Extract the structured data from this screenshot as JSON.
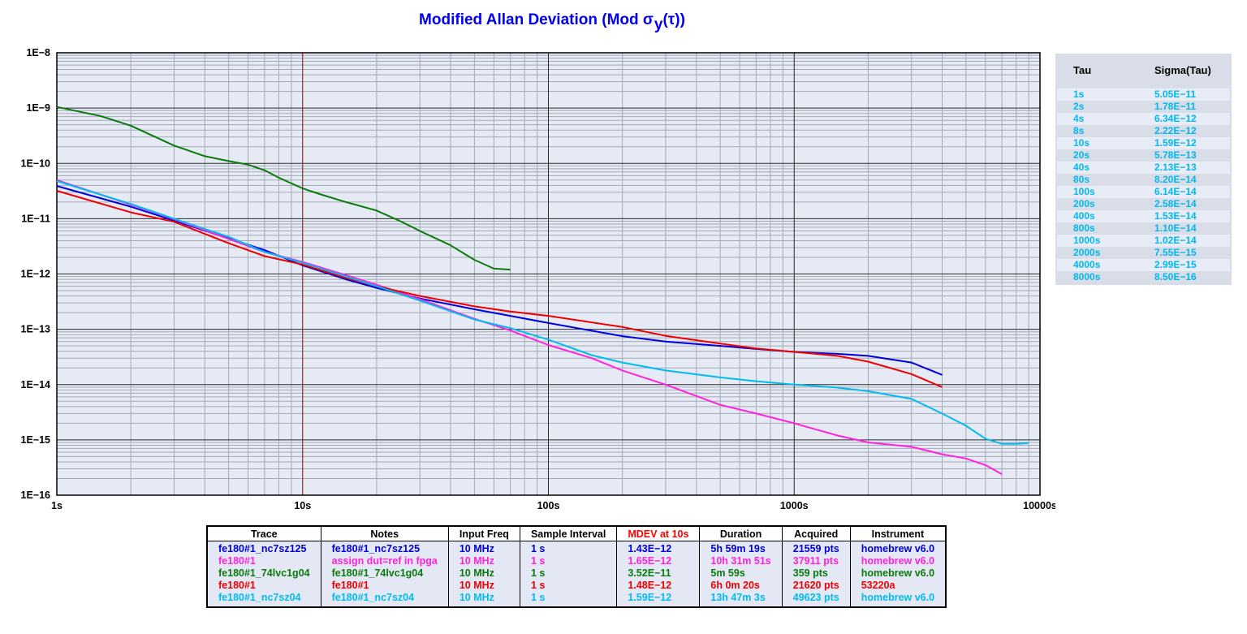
{
  "chart_data": {
    "type": "line",
    "title": "Modified Allan Deviation (Mod σ",
    "title_sub": "y",
    "title_tail": "(τ))",
    "x_scale": "log",
    "y_scale": "log",
    "xlim": [
      1,
      10000
    ],
    "ylim": [
      1e-16,
      1e-08
    ],
    "x_tick_labels": [
      "1s",
      "10s",
      "100s",
      "1000s",
      "10000s"
    ],
    "y_tick_labels": [
      "1E−8",
      "1E−9",
      "1E−10",
      "1E−11",
      "1E−12",
      "1E−13",
      "1E−14",
      "1E−15",
      "1E−16"
    ],
    "grid": true,
    "marker_line_x": 10,
    "series": [
      {
        "name": "fe180#1_nc7sz125",
        "color": "#0000dd",
        "x": [
          1,
          2,
          3,
          5,
          7,
          10,
          15,
          20,
          30,
          50,
          70,
          100,
          200,
          300,
          500,
          700,
          1000,
          1500,
          2000,
          3000,
          4000
        ],
        "y": [
          3.9e-11,
          1.65e-11,
          9.2e-12,
          4.4e-12,
          2.7e-12,
          1.43e-12,
          8e-13,
          5.6e-13,
          3.6e-13,
          2.3e-13,
          1.75e-13,
          1.3e-13,
          7.5e-14,
          6e-14,
          5e-14,
          4.4e-14,
          3.9e-14,
          3.6e-14,
          3.3e-14,
          2.5e-14,
          1.5e-14
        ]
      },
      {
        "name": "fe180#1",
        "color": "#ff22dd",
        "x": [
          1,
          2,
          3,
          5,
          7,
          10,
          15,
          20,
          30,
          50,
          70,
          100,
          150,
          200,
          300,
          500,
          700,
          1000,
          1500,
          2000,
          3000,
          4000,
          5000,
          6000,
          7000
        ],
        "y": [
          5e-11,
          1.8e-11,
          9.8e-12,
          4.3e-12,
          2.5e-12,
          1.65e-12,
          9.5e-13,
          6.4e-13,
          3.5e-13,
          1.55e-13,
          9.5e-14,
          5.2e-14,
          3e-14,
          1.8e-14,
          1e-14,
          4.3e-15,
          3e-15,
          2e-15,
          1.2e-15,
          9e-16,
          7.5e-16,
          5.5e-16,
          4.6e-16,
          3.5e-16,
          2.4e-16
        ]
      },
      {
        "name": "fe180#1_74lvc1g04",
        "color": "#0a7a0a",
        "x": [
          1,
          1.5,
          2,
          3,
          4,
          5,
          6,
          7,
          8,
          10,
          12,
          15,
          20,
          25,
          30,
          40,
          50,
          60,
          70
        ],
        "y": [
          1.05e-09,
          7.2e-10,
          4.8e-10,
          2.1e-10,
          1.35e-10,
          1.1e-10,
          9.5e-11,
          7.5e-11,
          5.5e-11,
          3.52e-11,
          2.7e-11,
          2e-11,
          1.4e-11,
          9e-12,
          6e-12,
          3.3e-12,
          1.8e-12,
          1.25e-12,
          1.2e-12
        ]
      },
      {
        "name": "fe180#1",
        "color": "#ee0000",
        "x": [
          1,
          2,
          3,
          5,
          7,
          10,
          15,
          20,
          30,
          50,
          70,
          100,
          200,
          300,
          500,
          700,
          1000,
          1500,
          2000,
          3000,
          4000
        ],
        "y": [
          3.2e-11,
          1.3e-11,
          8.8e-12,
          3.6e-12,
          2.1e-12,
          1.48e-12,
          8.5e-13,
          6e-13,
          4e-13,
          2.6e-13,
          2.1e-13,
          1.75e-13,
          1.1e-13,
          7.6e-14,
          5.5e-14,
          4.5e-14,
          3.9e-14,
          3.3e-14,
          2.6e-14,
          1.55e-14,
          9e-15
        ]
      },
      {
        "name": "fe180#1_nc7sz04",
        "color": "#00bbee",
        "x": [
          1,
          2,
          3,
          5,
          7,
          10,
          15,
          20,
          30,
          50,
          70,
          100,
          150,
          200,
          300,
          500,
          700,
          1000,
          1500,
          2000,
          3000,
          4000,
          5000,
          6000,
          7000,
          8000,
          9000
        ],
        "y": [
          4.8e-11,
          1.85e-11,
          1e-11,
          4.7e-12,
          2.5e-12,
          1.59e-12,
          9e-13,
          6e-13,
          3.3e-13,
          1.5e-13,
          1.05e-13,
          6.5e-14,
          3.4e-14,
          2.5e-14,
          1.8e-14,
          1.35e-14,
          1.15e-14,
          1e-14,
          8.8e-15,
          7.6e-15,
          5.5e-15,
          3e-15,
          1.8e-15,
          1.05e-15,
          8.5e-16,
          8.5e-16,
          8.8e-16
        ]
      }
    ]
  },
  "tau_table": {
    "header_tau": "Tau",
    "header_sigma": "Sigma(Tau)",
    "rows": [
      {
        "tau": "1s",
        "sigma": "5.05E−11"
      },
      {
        "tau": "2s",
        "sigma": "1.78E−11"
      },
      {
        "tau": "4s",
        "sigma": "6.34E−12"
      },
      {
        "tau": "8s",
        "sigma": "2.22E−12"
      },
      {
        "tau": "10s",
        "sigma": "1.59E−12"
      },
      {
        "tau": "20s",
        "sigma": "5.78E−13"
      },
      {
        "tau": "40s",
        "sigma": "2.13E−13"
      },
      {
        "tau": "80s",
        "sigma": "8.20E−14"
      },
      {
        "tau": "100s",
        "sigma": "6.14E−14"
      },
      {
        "tau": "200s",
        "sigma": "2.58E−14"
      },
      {
        "tau": "400s",
        "sigma": "1.53E−14"
      },
      {
        "tau": "800s",
        "sigma": "1.10E−14"
      },
      {
        "tau": "1000s",
        "sigma": "1.02E−14"
      },
      {
        "tau": "2000s",
        "sigma": "7.55E−15"
      },
      {
        "tau": "4000s",
        "sigma": "2.99E−15"
      },
      {
        "tau": "8000s",
        "sigma": "8.50E−16"
      }
    ]
  },
  "legend_table": {
    "headers": [
      "Trace",
      "Notes",
      "Input Freq",
      "Sample Interval",
      "MDEV at 10s",
      "Duration",
      "Acquired",
      "Instrument"
    ],
    "mdev_header_color": "#ff0000",
    "rows": [
      {
        "color": "#0000dd",
        "cells": [
          "fe180#1_nc7sz125",
          "fe180#1_nc7sz125",
          "10 MHz",
          "1 s",
          "1.43E−12",
          "5h 59m 19s",
          "21559 pts",
          "homebrew v6.0"
        ]
      },
      {
        "color": "#ff22dd",
        "cells": [
          "fe180#1",
          "assign dut=ref in fpga",
          "10 MHz",
          "1 s",
          "1.65E−12",
          "10h 31m 51s",
          "37911 pts",
          "homebrew v6.0"
        ]
      },
      {
        "color": "#0a7a0a",
        "cells": [
          "fe180#1_74lvc1g04",
          "fe180#1_74lvc1g04",
          "10 MHz",
          "1 s",
          "3.52E−11",
          "5m 59s",
          "359 pts",
          "homebrew v6.0"
        ]
      },
      {
        "color": "#ee0000",
        "cells": [
          "fe180#1",
          "fe180#1",
          "10 MHz",
          "1 s",
          "1.48E−12",
          "6h 0m 20s",
          "21620 pts",
          "53220a"
        ]
      },
      {
        "color": "#00bbee",
        "cells": [
          "fe180#1_nc7sz04",
          "fe180#1_nc7sz04",
          "10 MHz",
          "1 s",
          "1.59E−12",
          "13h 47m 3s",
          "49623 pts",
          "homebrew v6.0"
        ]
      }
    ]
  }
}
